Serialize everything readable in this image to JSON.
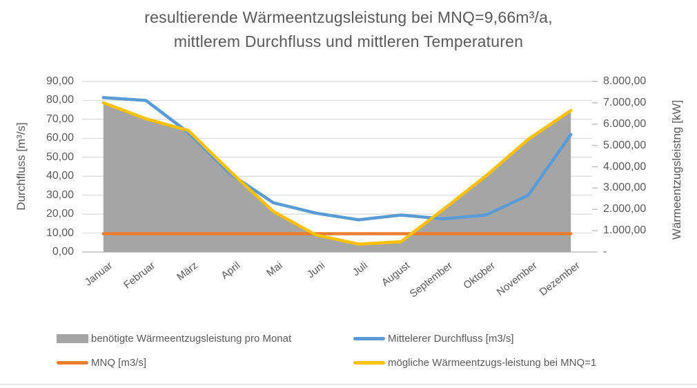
{
  "title": {
    "line1": "resultierende Wärmeentzugsleistung bei MNQ=9,66m³/a,",
    "line2": "mittlerem Durchfluss und mittleren Temperaturen"
  },
  "chart_data": {
    "type": "combo-area-line",
    "title": "resultierende Wärmeentzugsleistung bei MNQ=9,66m³/a, mittlerem Durchfluss und mittleren Temperaturen",
    "categories": [
      "Januar",
      "Februar",
      "März",
      "April",
      "Mai",
      "Juni",
      "Juli",
      "August",
      "September",
      "Oktober",
      "November",
      "Dezember"
    ],
    "left_axis": {
      "title": "Durchfluss [m³/s]",
      "min": 0,
      "max": 90,
      "step": 10,
      "tick_labels": [
        "90,00",
        "80,00",
        "70,00",
        "60,00",
        "50,00",
        "40,00",
        "30,00",
        "20,00",
        "10,00",
        "0,00"
      ]
    },
    "right_axis": {
      "title": "Wärmeentzugsleistng [kW]",
      "min": 0,
      "max": 8000,
      "step": 1000,
      "tick_labels": [
        "8.000,00",
        "7.000,00",
        "6.000,00",
        "5.000,00",
        "4.000,00",
        "3.000,00",
        "2.000,00",
        "1.000,00",
        "-"
      ]
    },
    "grid": true,
    "legend_position": "bottom",
    "series": [
      {
        "name": "benötigte Wärmeentzugsleistung pro Monat",
        "type": "area",
        "axis": "right",
        "color": "#a5a5a5",
        "values": [
          7000,
          6250,
          5700,
          3750,
          1900,
          800,
          370,
          480,
          2000,
          3570,
          5290,
          6640
        ]
      },
      {
        "name": "Mittelerer Durchfluss [m3/s]",
        "type": "line",
        "axis": "left",
        "color": "#5b9bd5",
        "values": [
          81.5,
          80,
          63,
          41,
          26,
          20.5,
          17,
          19.5,
          17.5,
          19.5,
          30,
          62
        ]
      },
      {
        "name": "MNQ [m3/s]",
        "type": "line",
        "axis": "left",
        "color": "#ed7d31",
        "values": [
          9.66,
          9.66,
          9.66,
          9.66,
          9.66,
          9.66,
          9.66,
          9.66,
          9.66,
          9.66,
          9.66,
          9.66
        ]
      },
      {
        "name": "mögliche Wärmeentzugs-leistung bei MNQ=1",
        "type": "line",
        "axis": "right",
        "color": "#ffc000",
        "values": [
          7000,
          6250,
          5700,
          3750,
          1900,
          800,
          370,
          480,
          2000,
          3570,
          5290,
          6640
        ]
      }
    ]
  },
  "legend": {
    "items": [
      {
        "label": "benötigte Wärmeentzugsleistung pro Monat",
        "marker": "area",
        "color": "#a5a5a5"
      },
      {
        "label": "Mittelerer Durchfluss [m3/s]",
        "marker": "line",
        "color": "#5b9bd5"
      },
      {
        "label": "MNQ [m3/s]",
        "marker": "line",
        "color": "#ed7d31"
      },
      {
        "label": "mögliche Wärmeentzugs-leistung bei MNQ=1",
        "marker": "line",
        "color": "#ffc000"
      }
    ]
  },
  "colors": {
    "gridline": "#d9d9d9",
    "axis_line": "#bfbfbf",
    "text": "#595959"
  }
}
